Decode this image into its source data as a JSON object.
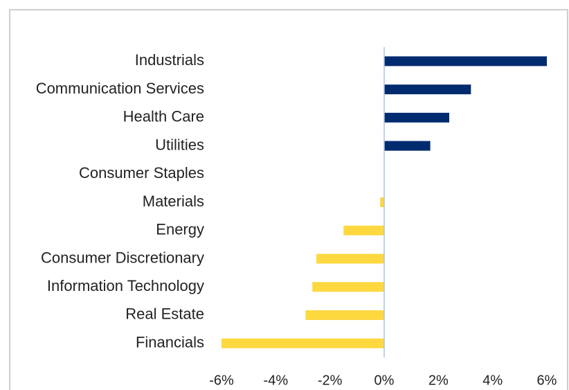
{
  "chart_data": {
    "type": "barh",
    "categories": [
      "Industrials",
      "Communication Services",
      "Health Care",
      "Utilities",
      "Consumer Staples",
      "Materials",
      "Energy",
      "Consumer Discretionary",
      "Information Technology",
      "Real Estate",
      "Financials"
    ],
    "values": [
      6.0,
      3.2,
      2.4,
      1.7,
      0,
      -0.15,
      -1.5,
      -2.5,
      -2.65,
      -2.9,
      -6.0
    ],
    "color_positive": "#002b6e",
    "color_negative": "#fdd83f",
    "xlim": [
      -6,
      6
    ],
    "xticks": [
      {
        "value": -6,
        "label": "-6%"
      },
      {
        "value": -4,
        "label": "-4%"
      },
      {
        "value": -2,
        "label": "-2%"
      },
      {
        "value": 0,
        "label": "0%"
      },
      {
        "value": 2,
        "label": "2%"
      },
      {
        "value": 4,
        "label": "4%"
      },
      {
        "value": 6,
        "label": "6%"
      }
    ],
    "grid": false
  }
}
